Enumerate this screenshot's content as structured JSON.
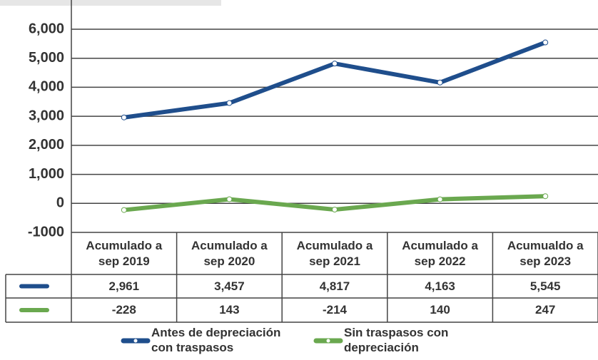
{
  "chart_data": {
    "type": "line",
    "categories": [
      "Acumulado a sep 2019",
      "Acumulado a sep 2020",
      "Acumulado a sep 2021",
      "Acumulado a sep 2022",
      "Acumualdo a sep 2023"
    ],
    "series": [
      {
        "name": "Antes de depreciación con traspasos",
        "color": "#1f4e8c",
        "values": [
          2961,
          3457,
          4817,
          4163,
          5545
        ],
        "value_labels": [
          "2,961",
          "3,457",
          "4,817",
          "4,163",
          "5,545"
        ]
      },
      {
        "name": "Sin traspasos con depreciación",
        "color": "#6aa84f",
        "values": [
          -228,
          143,
          -214,
          140,
          247
        ]
      }
    ],
    "ylim": [
      -1000,
      6000
    ],
    "yticks": [
      -1000,
      0,
      {
        "value": 1000,
        "label": "1,000"
      },
      {
        "value": 2000,
        "label": "2,000"
      },
      {
        "value": 3000,
        "label": "3,000"
      },
      {
        "value": 4000,
        "label": "4,000"
      },
      {
        "value": 5000,
        "label": "5,000"
      },
      {
        "value": 6000,
        "label": "6,000"
      }
    ],
    "grid": true
  }
}
